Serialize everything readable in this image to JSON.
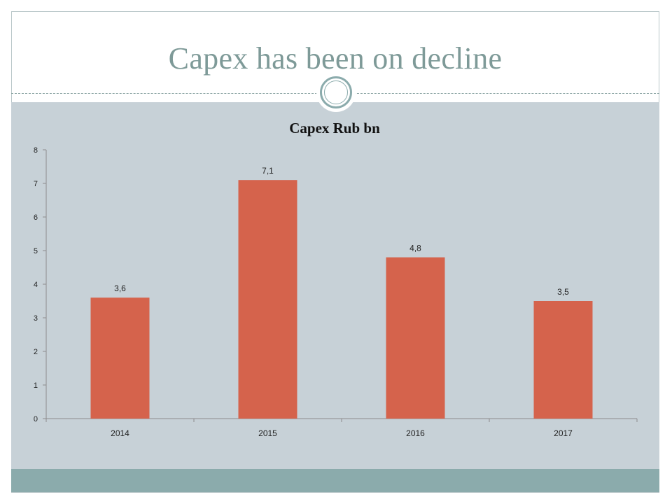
{
  "slide": {
    "title": "Capex has been on decline"
  },
  "colors": {
    "title": "#7e9a98",
    "panel": "#c7d1d7",
    "footer": "#8babac",
    "bar": "#d5634c",
    "axis": "#8c8c8c"
  },
  "chart_data": {
    "type": "bar",
    "title": "Capex Rub bn",
    "xlabel": "",
    "ylabel": "",
    "categories": [
      "2014",
      "2015",
      "2016",
      "2017"
    ],
    "values": [
      3.6,
      7.1,
      4.8,
      3.5
    ],
    "data_labels": [
      "3,6",
      "7,1",
      "4,8",
      "3,5"
    ],
    "ylim": [
      0,
      8
    ],
    "yticks": [
      0,
      1,
      2,
      3,
      4,
      5,
      6,
      7,
      8
    ],
    "grid": false,
    "legend": "none"
  }
}
